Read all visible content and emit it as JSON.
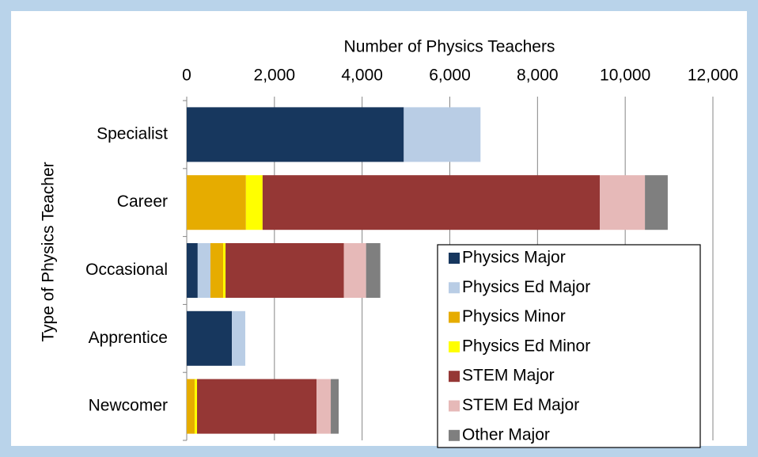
{
  "chart_data": {
    "type": "stacked-bar-horizontal",
    "title": "Number of Physics Teachers",
    "y_label": "Type of Physics Teacher",
    "categories": [
      "Specialist",
      "Career",
      "Occasional",
      "Apprentice",
      "Newcomer"
    ],
    "series": [
      {
        "name": "Physics Major",
        "color": "#17375e",
        "values": [
          4950,
          0,
          250,
          1030,
          0
        ]
      },
      {
        "name": "Physics Ed Major",
        "color": "#b9cde5",
        "values": [
          1750,
          0,
          290,
          305,
          0
        ]
      },
      {
        "name": "Physics Minor",
        "color": "#e6ac00",
        "values": [
          0,
          1350,
          290,
          0,
          180
        ]
      },
      {
        "name": "Physics Ed Minor",
        "color": "#ffff00",
        "values": [
          0,
          380,
          55,
          0,
          55
        ]
      },
      {
        "name": "STEM Major",
        "color": "#953735",
        "values": [
          0,
          7690,
          2700,
          0,
          2725
        ]
      },
      {
        "name": "STEM Ed Major",
        "color": "#e6b9b8",
        "values": [
          0,
          1030,
          505,
          0,
          325
        ]
      },
      {
        "name": "Other Major",
        "color": "#7f7f7f",
        "values": [
          0,
          520,
          325,
          0,
          180
        ]
      }
    ],
    "xlim": [
      0,
      12000
    ],
    "xticks": [
      0,
      {
        "value": 2000,
        "label": "2,000"
      },
      {
        "value": 4000,
        "label": "4,000"
      },
      {
        "value": 6000,
        "label": "6,000"
      },
      {
        "value": 8000,
        "label": "8,000"
      },
      {
        "value": 10000,
        "label": "10,000"
      },
      {
        "value": 12000,
        "label": "12,000"
      }
    ],
    "grid": true,
    "legend": "lower-right"
  }
}
